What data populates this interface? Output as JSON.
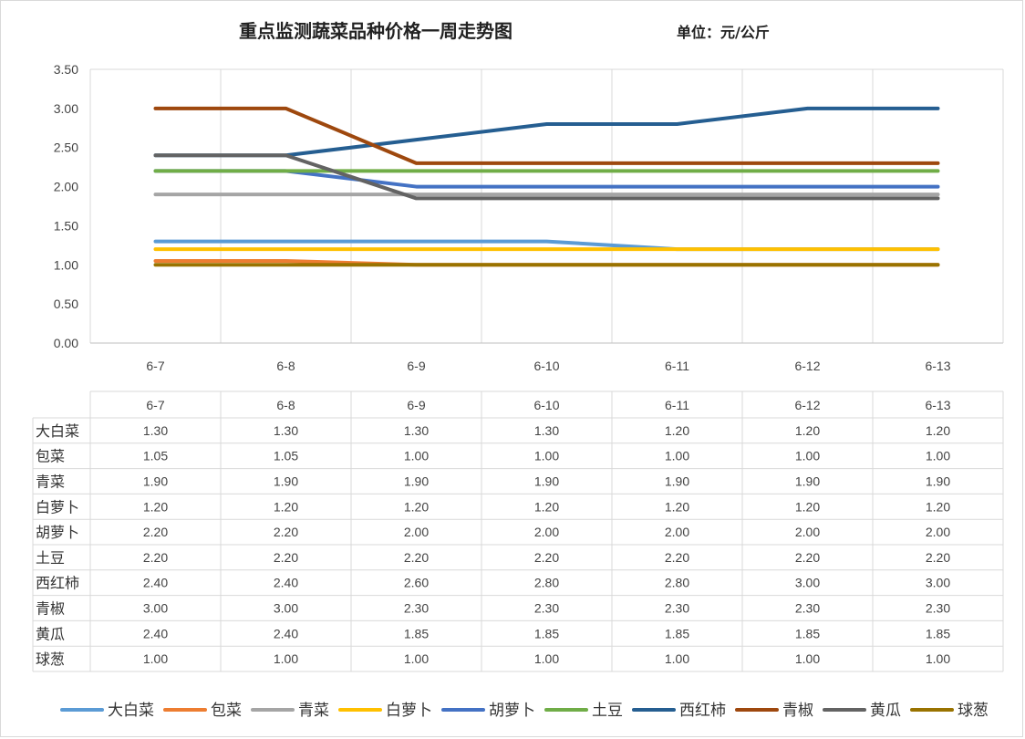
{
  "chart_data": {
    "type": "line",
    "title": "重点监测蔬菜品种价格一周走势图",
    "unit": "单位：元/公斤",
    "categories": [
      "6-7",
      "6-8",
      "6-9",
      "6-10",
      "6-11",
      "6-12",
      "6-13"
    ],
    "ylim": [
      0,
      3.5
    ],
    "yticks": [
      "0.00",
      "0.50",
      "1.00",
      "1.50",
      "2.00",
      "2.50",
      "3.00",
      "3.50"
    ],
    "grid": "vertical",
    "legend": "bottom",
    "data_table": true,
    "series": [
      {
        "name": "大白菜",
        "color": "#5b9bd5",
        "values": [
          1.3,
          1.3,
          1.3,
          1.3,
          1.2,
          1.2,
          1.2
        ],
        "labels": [
          "1.30",
          "1.30",
          "1.30",
          "1.30",
          "1.20",
          "1.20",
          "1.20"
        ]
      },
      {
        "name": "包菜",
        "color": "#ed7d31",
        "values": [
          1.05,
          1.05,
          1.0,
          1.0,
          1.0,
          1.0,
          1.0
        ],
        "labels": [
          "1.05",
          "1.05",
          "1.00",
          "1.00",
          "1.00",
          "1.00",
          "1.00"
        ]
      },
      {
        "name": "青菜",
        "color": "#a5a5a5",
        "values": [
          1.9,
          1.9,
          1.9,
          1.9,
          1.9,
          1.9,
          1.9
        ],
        "labels": [
          "1.90",
          "1.90",
          "1.90",
          "1.90",
          "1.90",
          "1.90",
          "1.90"
        ]
      },
      {
        "name": "白萝卜",
        "color": "#ffc000",
        "values": [
          1.2,
          1.2,
          1.2,
          1.2,
          1.2,
          1.2,
          1.2
        ],
        "labels": [
          "1.20",
          "1.20",
          "1.20",
          "1.20",
          "1.20",
          "1.20",
          "1.20"
        ]
      },
      {
        "name": "胡萝卜",
        "color": "#4472c4",
        "values": [
          2.2,
          2.2,
          2.0,
          2.0,
          2.0,
          2.0,
          2.0
        ],
        "labels": [
          "2.20",
          "2.20",
          "2.00",
          "2.00",
          "2.00",
          "2.00",
          "2.00"
        ]
      },
      {
        "name": "土豆",
        "color": "#70ad47",
        "values": [
          2.2,
          2.2,
          2.2,
          2.2,
          2.2,
          2.2,
          2.2
        ],
        "labels": [
          "2.20",
          "2.20",
          "2.20",
          "2.20",
          "2.20",
          "2.20",
          "2.20"
        ]
      },
      {
        "name": "西红柿",
        "color": "#255e91",
        "values": [
          2.4,
          2.4,
          2.6,
          2.8,
          2.8,
          3.0,
          3.0
        ],
        "labels": [
          "2.40",
          "2.40",
          "2.60",
          "2.80",
          "2.80",
          "3.00",
          "3.00"
        ]
      },
      {
        "name": "青椒",
        "color": "#9e480e",
        "values": [
          3.0,
          3.0,
          2.3,
          2.3,
          2.3,
          2.3,
          2.3
        ],
        "labels": [
          "3.00",
          "3.00",
          "2.30",
          "2.30",
          "2.30",
          "2.30",
          "2.30"
        ]
      },
      {
        "name": "黄瓜",
        "color": "#636363",
        "values": [
          2.4,
          2.4,
          1.85,
          1.85,
          1.85,
          1.85,
          1.85
        ],
        "labels": [
          "2.40",
          "2.40",
          "1.85",
          "1.85",
          "1.85",
          "1.85",
          "1.85"
        ]
      },
      {
        "name": "球葱",
        "color": "#997300",
        "values": [
          1.0,
          1.0,
          1.0,
          1.0,
          1.0,
          1.0,
          1.0
        ],
        "labels": [
          "1.00",
          "1.00",
          "1.00",
          "1.00",
          "1.00",
          "1.00",
          "1.00"
        ]
      }
    ]
  }
}
